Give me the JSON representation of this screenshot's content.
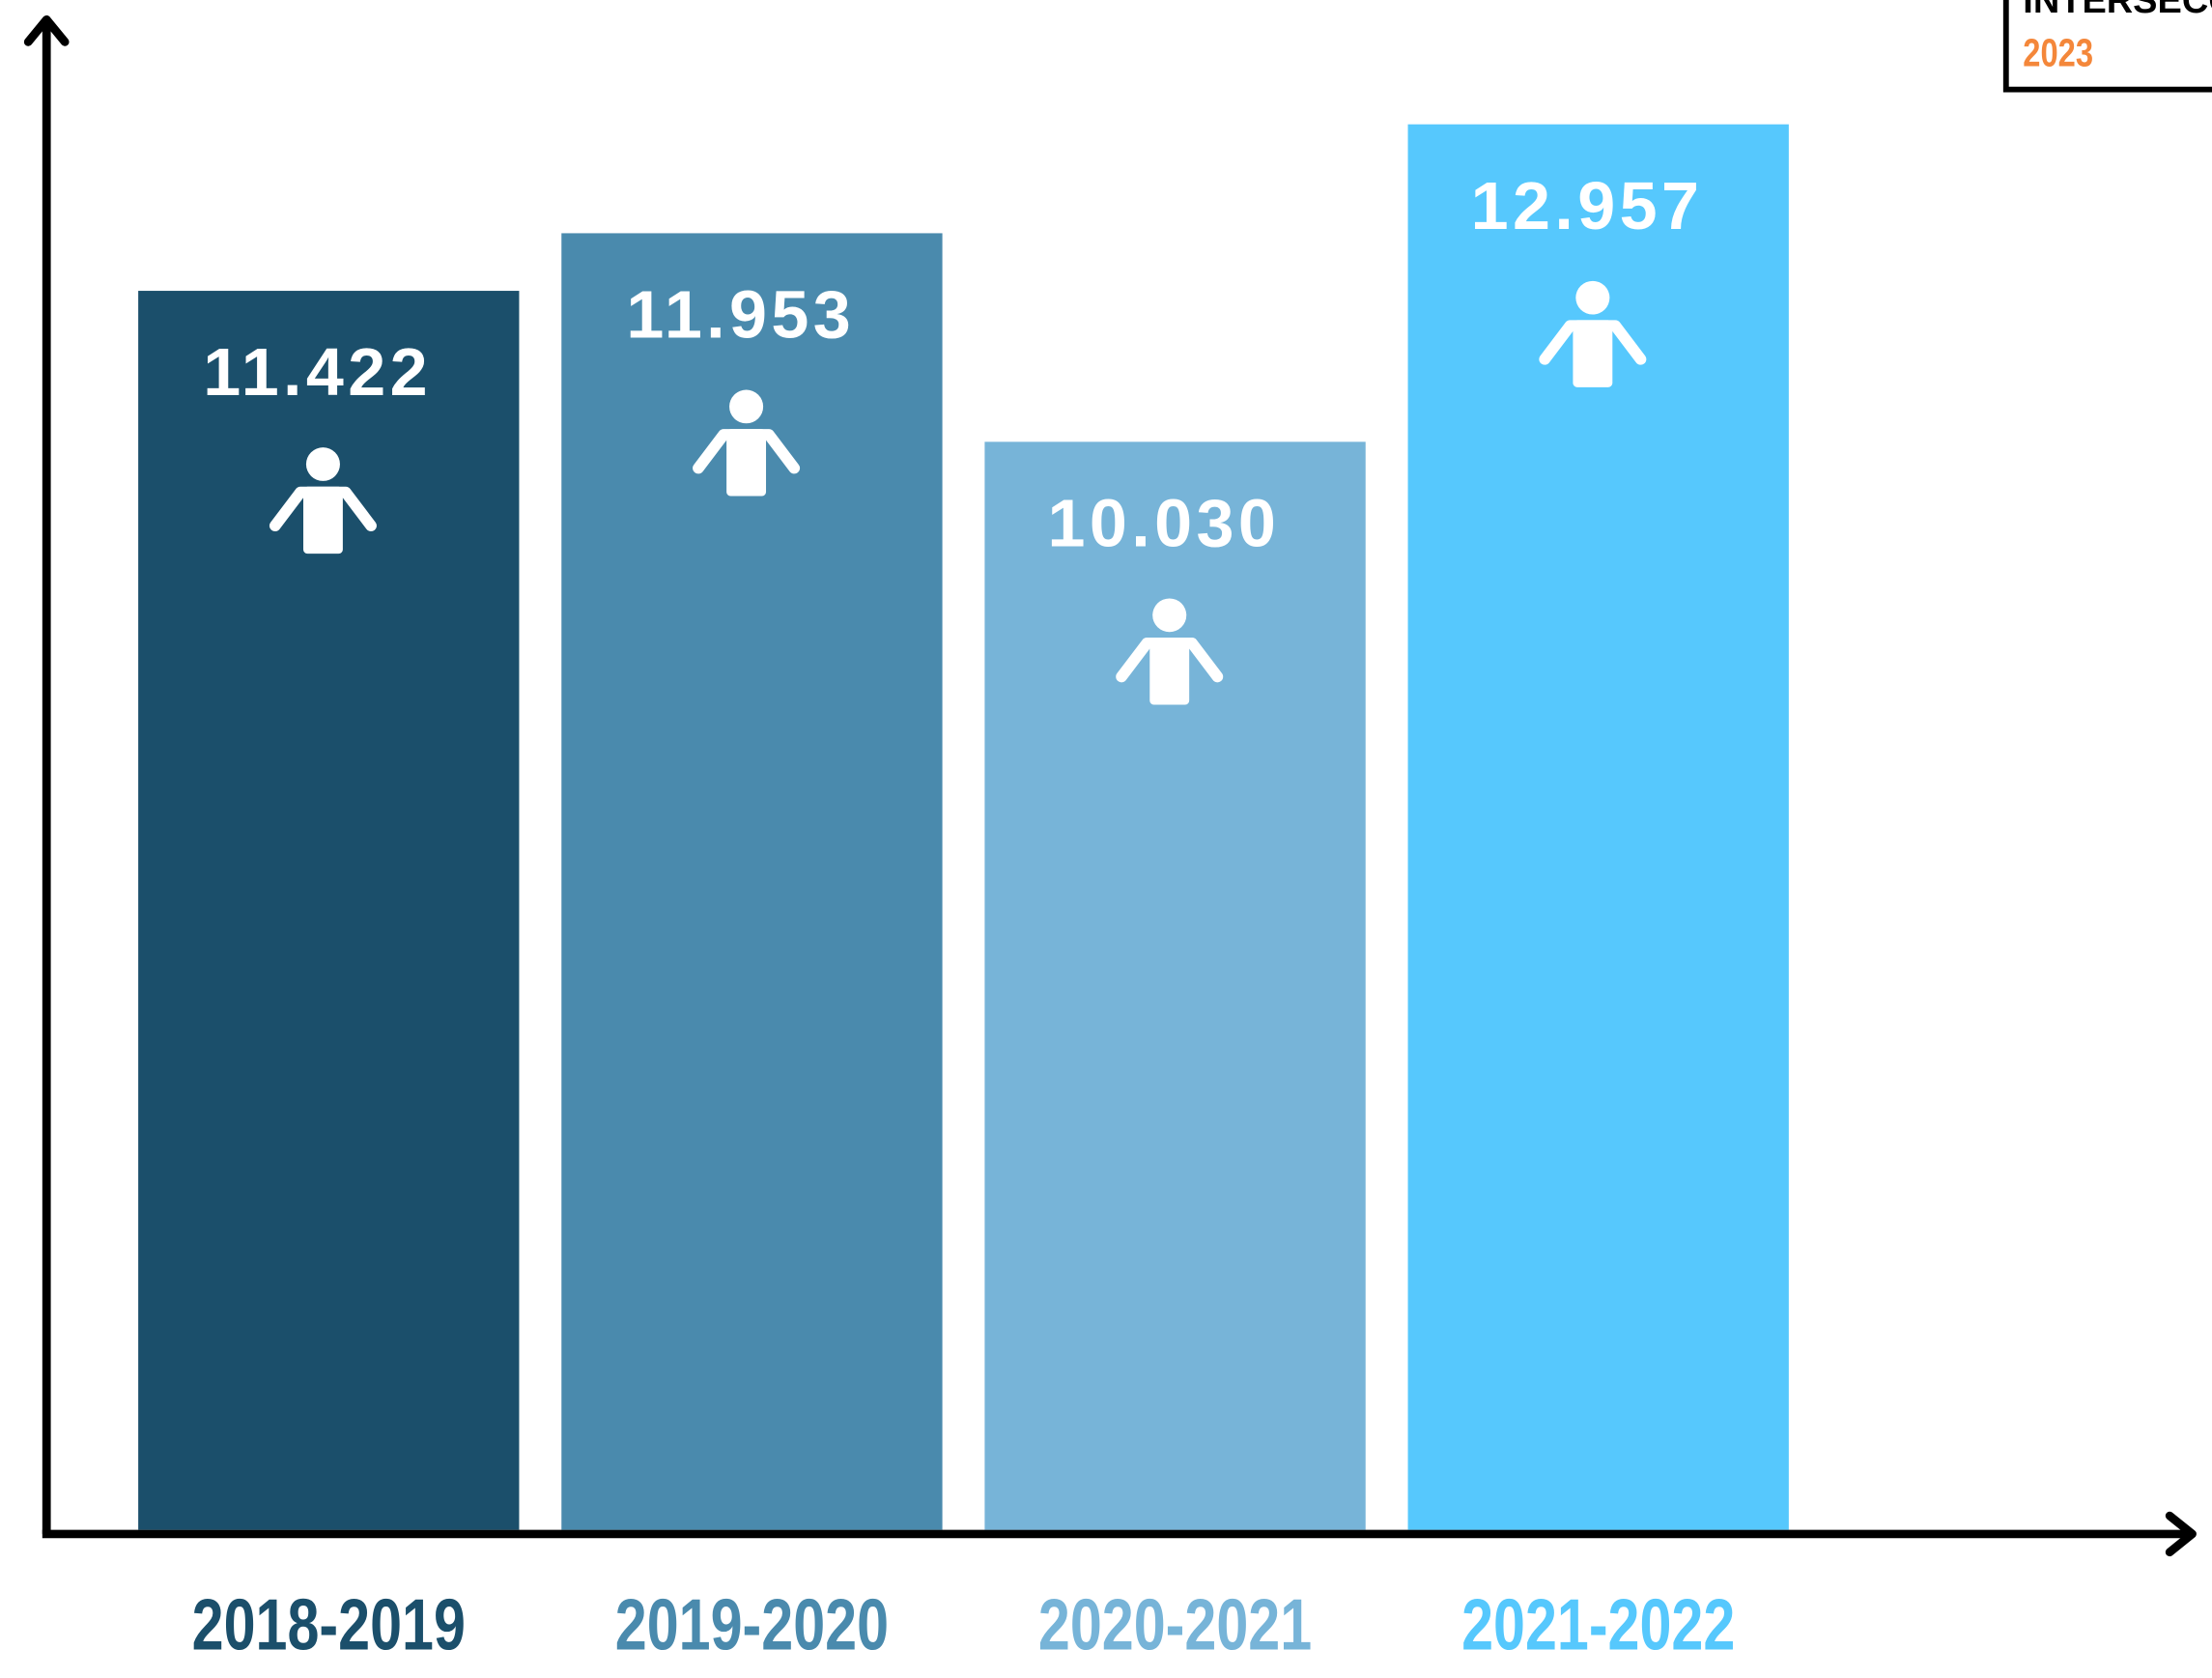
{
  "chart_data": {
    "type": "bar",
    "categories": [
      "2018-2019",
      "2019-2020",
      "2020-2021",
      "2021-2022"
    ],
    "values": [
      11422,
      11953,
      10030,
      12957
    ],
    "value_labels": [
      "11.422",
      "11.953",
      "10.030",
      "12.957"
    ],
    "colors": [
      "#1b4f6b",
      "#4a8aad",
      "#77b4d8",
      "#56c8fd"
    ],
    "ylim": [
      0,
      14000
    ],
    "badge": {
      "title": "INTERSECC",
      "year": "2023"
    }
  }
}
